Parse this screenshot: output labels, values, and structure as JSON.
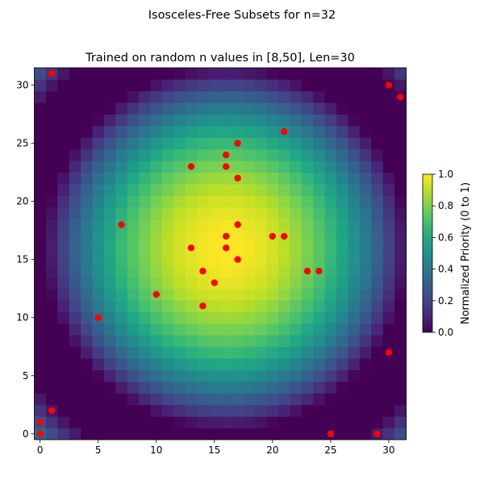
{
  "chart_data": {
    "type": "heatmap",
    "suptitle": "Isosceles-Free Subsets for n=32",
    "title": "Trained on random n values in [8,50], Len=30",
    "n": 32,
    "xlim": [
      -0.5,
      31.5
    ],
    "ylim": [
      -0.5,
      31.5
    ],
    "xticks": [
      0,
      5,
      10,
      15,
      20,
      25,
      30
    ],
    "yticks": [
      0,
      5,
      10,
      15,
      20,
      25,
      30
    ],
    "heatmap_description": "Normalized priority peaks near (16,16) and falls to 0 in a ring, rising again toward the four corners",
    "heatmap_peak": 1.0,
    "colormap": "viridis",
    "colorbar": {
      "label": "Normalized Priority (0 to 1)",
      "range": [
        0,
        1
      ],
      "ticks": [
        "0.0",
        "0.2",
        "0.4",
        "0.6",
        "0.8",
        "1.0"
      ]
    },
    "point_color": "#ff0000",
    "points": [
      [
        1,
        31
      ],
      [
        30,
        30
      ],
      [
        31,
        29
      ],
      [
        21,
        26
      ],
      [
        17,
        25
      ],
      [
        16,
        24
      ],
      [
        13,
        23
      ],
      [
        16,
        23
      ],
      [
        17,
        22
      ],
      [
        7,
        18
      ],
      [
        17,
        18
      ],
      [
        16,
        17
      ],
      [
        20,
        17
      ],
      [
        21,
        17
      ],
      [
        13,
        16
      ],
      [
        16,
        16
      ],
      [
        17,
        15
      ],
      [
        14,
        14
      ],
      [
        23,
        14
      ],
      [
        24,
        14
      ],
      [
        15,
        13
      ],
      [
        10,
        12
      ],
      [
        14,
        11
      ],
      [
        5,
        10
      ],
      [
        30,
        7
      ],
      [
        1,
        2
      ],
      [
        0,
        1
      ],
      [
        0,
        0
      ],
      [
        25,
        0
      ],
      [
        29,
        0
      ]
    ]
  }
}
